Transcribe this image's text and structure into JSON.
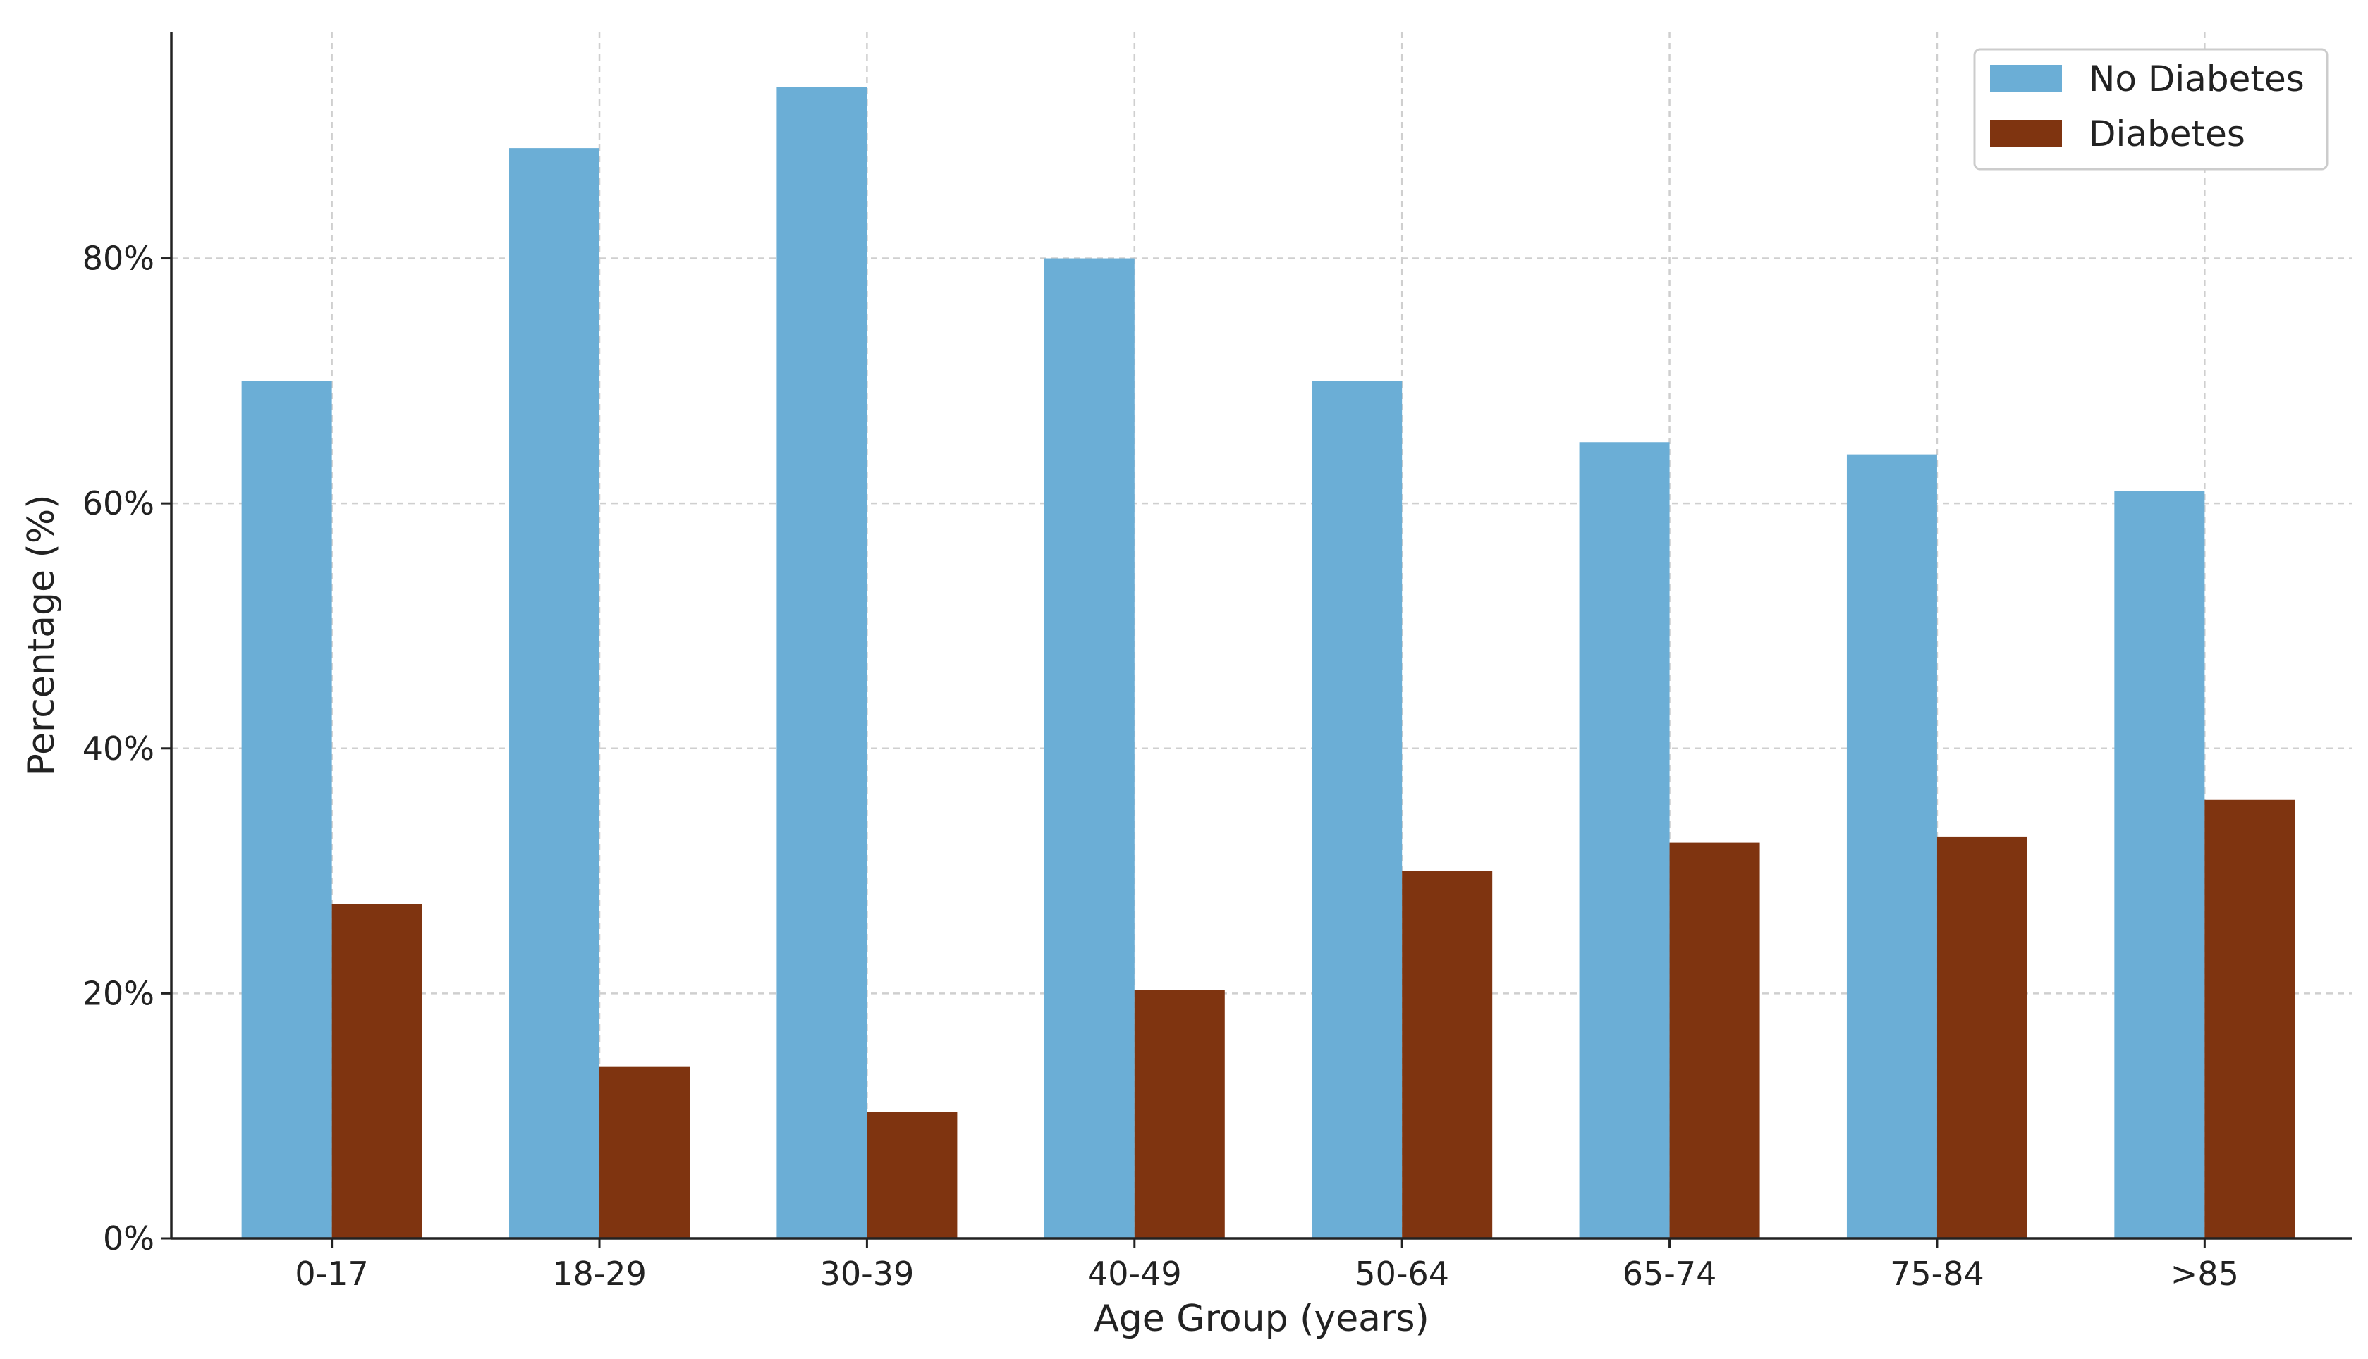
{
  "chart_data": {
    "type": "bar",
    "title": "",
    "xlabel": "Age Group (years)",
    "ylabel": "Percentage (%)",
    "categories": [
      "0-17",
      "18-29",
      "30-39",
      "40-49",
      "50-64",
      "65-74",
      "75-84",
      ">85"
    ],
    "series": [
      {
        "name": "No Diabetes",
        "color": "#6baed6",
        "values": [
          70,
          89,
          94,
          80,
          70,
          65,
          64,
          61
        ]
      },
      {
        "name": "Diabetes",
        "color": "#7f3410",
        "values": [
          27.3,
          14,
          10.3,
          20.3,
          30,
          32.3,
          32.8,
          35.8
        ]
      }
    ],
    "ylim": [
      0,
      98.5
    ],
    "yticks": [
      0,
      20,
      40,
      60,
      80
    ],
    "ytick_labels": [
      "0%",
      "20%",
      "40%",
      "60%",
      "80%"
    ],
    "grid": true,
    "legend_position": "top-right"
  }
}
